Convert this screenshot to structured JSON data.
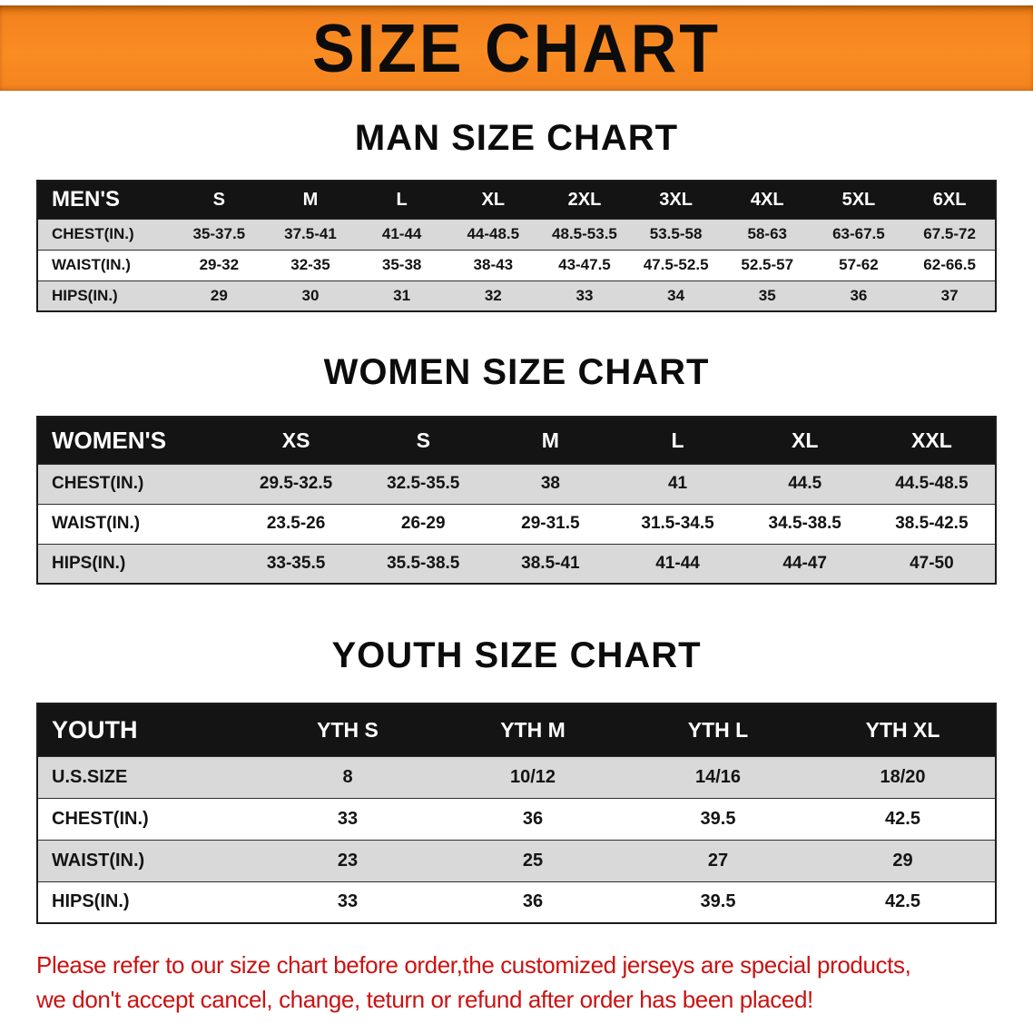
{
  "banner": {
    "title": "SIZE CHART"
  },
  "sections": [
    {
      "heading": "MAN SIZE CHART",
      "table": {
        "header": [
          "MEN'S",
          "S",
          "M",
          "L",
          "XL",
          "2XL",
          "3XL",
          "4XL",
          "5XL",
          "6XL"
        ],
        "rows": [
          [
            "CHEST(IN.)",
            "35-37.5",
            "37.5-41",
            "41-44",
            "44-48.5",
            "48.5-53.5",
            "53.5-58",
            "58-63",
            "63-67.5",
            "67.5-72"
          ],
          [
            "WAIST(IN.)",
            "29-32",
            "32-35",
            "35-38",
            "38-43",
            "43-47.5",
            "47.5-52.5",
            "52.5-57",
            "57-62",
            "62-66.5"
          ],
          [
            "HIPS(IN.)",
            "29",
            "30",
            "31",
            "32",
            "33",
            "34",
            "35",
            "36",
            "37"
          ]
        ]
      }
    },
    {
      "heading": "WOMEN SIZE CHART",
      "table": {
        "header": [
          "WOMEN'S",
          "XS",
          "S",
          "M",
          "L",
          "XL",
          "XXL"
        ],
        "rows": [
          [
            "CHEST(IN.)",
            "29.5-32.5",
            "32.5-35.5",
            "38",
            "41",
            "44.5",
            "44.5-48.5"
          ],
          [
            "WAIST(IN.)",
            "23.5-26",
            "26-29",
            "29-31.5",
            "31.5-34.5",
            "34.5-38.5",
            "38.5-42.5"
          ],
          [
            "HIPS(IN.)",
            "33-35.5",
            "35.5-38.5",
            "38.5-41",
            "41-44",
            "44-47",
            "47-50"
          ]
        ]
      }
    },
    {
      "heading": "YOUTH SIZE CHART",
      "table": {
        "header": [
          "YOUTH",
          "YTH S",
          "YTH M",
          "YTH L",
          "YTH XL"
        ],
        "rows": [
          [
            "U.S.SIZE",
            "8",
            "10/12",
            "14/16",
            "18/20"
          ],
          [
            "CHEST(IN.)",
            "33",
            "36",
            "39.5",
            "42.5"
          ],
          [
            "WAIST(IN.)",
            "23",
            "25",
            "27",
            "29"
          ],
          [
            "HIPS(IN.)",
            "33",
            "36",
            "39.5",
            "42.5"
          ]
        ]
      }
    }
  ],
  "disclaimer": {
    "line1": "Please refer to our size chart before order,the customized jerseys are special products,",
    "line2": "we don't accept cancel, change, teturn or refund after order has been placed!"
  },
  "colors": {
    "banner_bg": "#f5831f",
    "banner_bg_dark": "#d9720f",
    "header_bg": "#141414",
    "stripe_bg": "#d9d9d9",
    "disclaimer_red": "#cc1111"
  }
}
